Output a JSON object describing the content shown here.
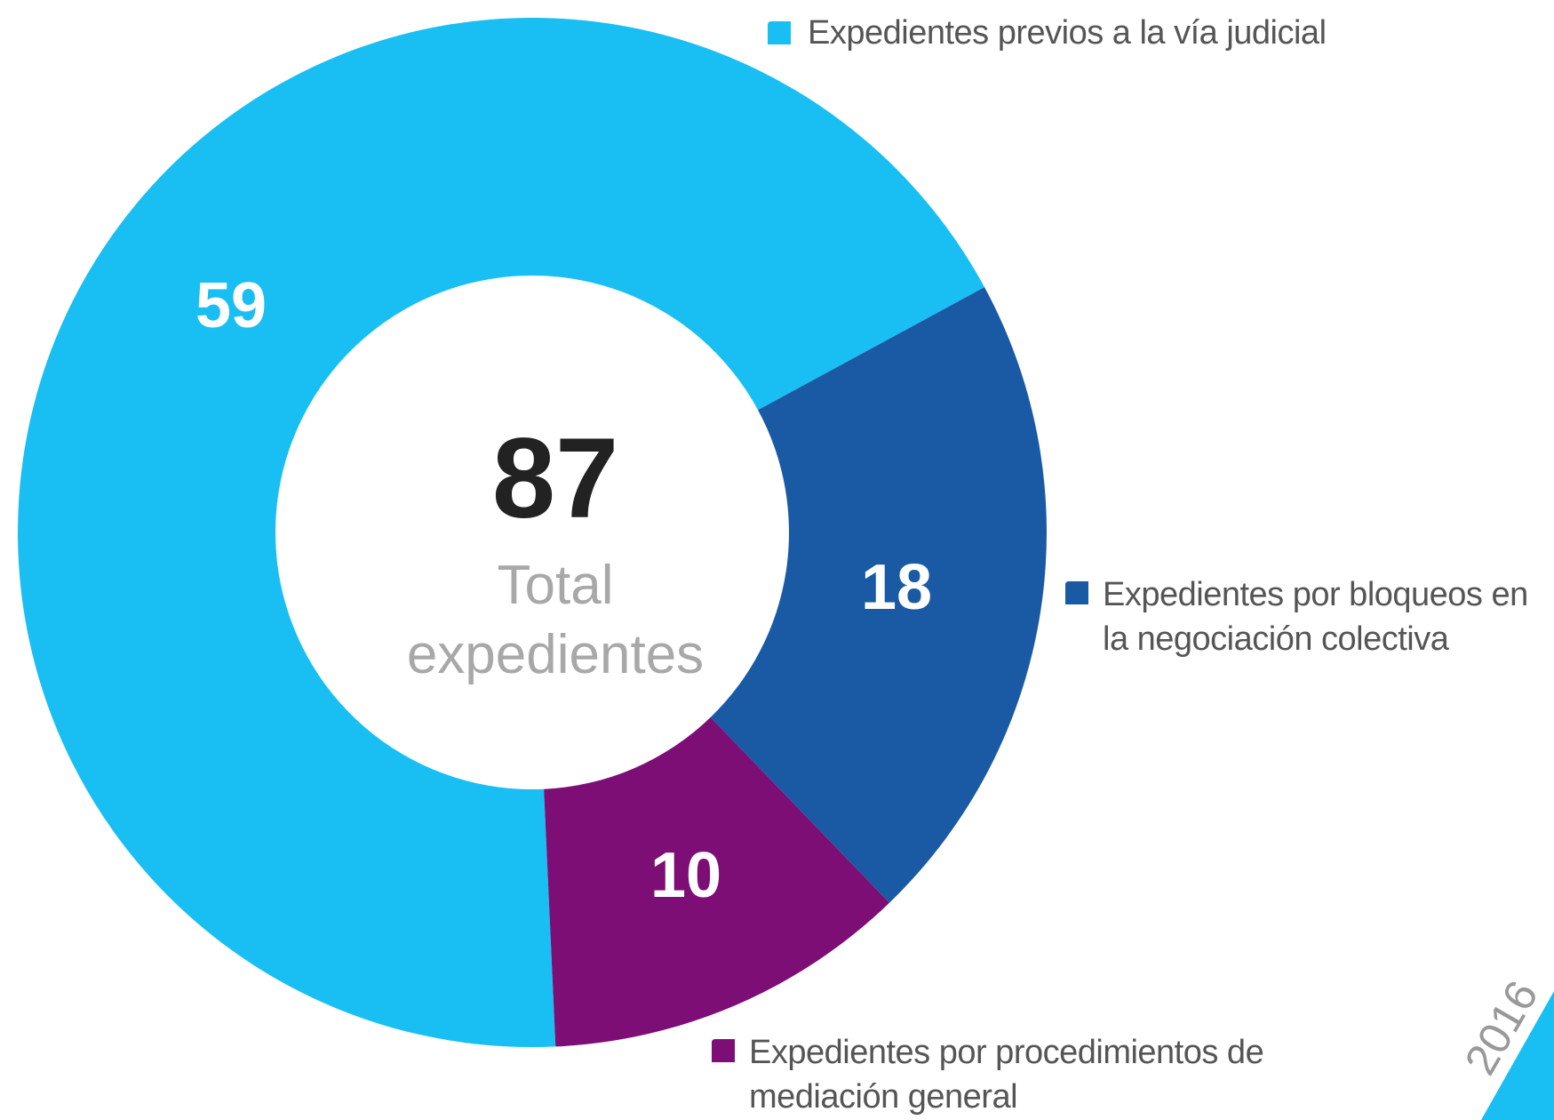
{
  "chart_data": {
    "type": "donut",
    "categories": [
      "Expedientes previos a la vía judicial",
      "Expedientes por bloqueos en la negociación colectiva",
      "Expedientes por procedimientos de mediación general"
    ],
    "values": [
      59,
      18,
      10
    ],
    "colors": [
      "#19bff2",
      "#1a5aa5",
      "#7c0e76"
    ],
    "total": 87,
    "total_label": "Total expedientes",
    "year": "2016"
  }
}
